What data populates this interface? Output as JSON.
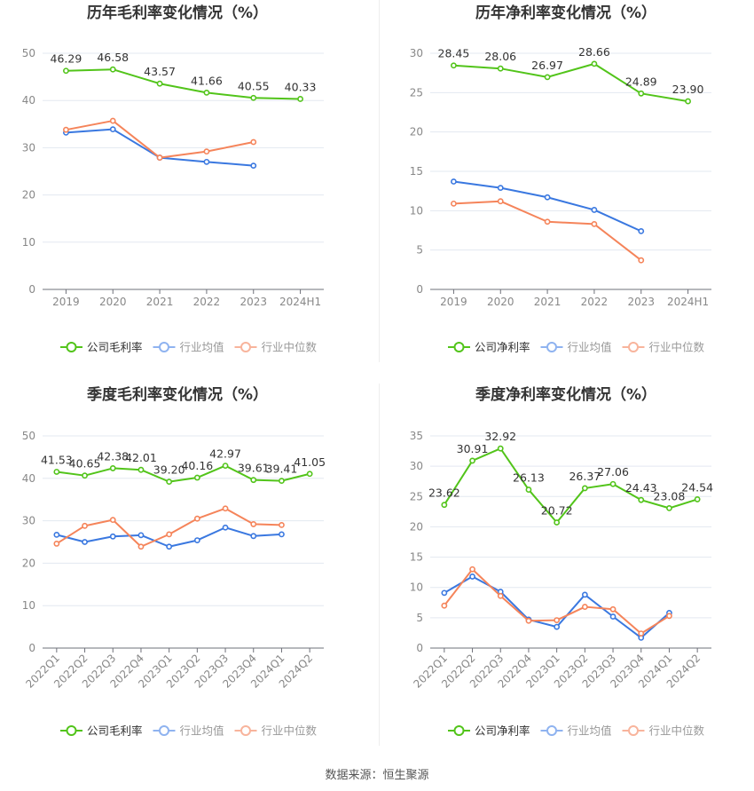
{
  "colors": {
    "company": "#52c41a",
    "industry_avg": "#3a78e0",
    "industry_median": "#f5845a",
    "legend_avg": "#8fb3f0",
    "legend_median": "#f8b49c",
    "grid": "#e3e8f0",
    "axis": "#6e7079"
  },
  "source": "数据来源：恒生聚源",
  "chart_data": [
    {
      "type": "line",
      "title": "历年毛利率变化情况（%）",
      "categories": [
        "2019",
        "2020",
        "2021",
        "2022",
        "2023",
        "2024H1"
      ],
      "ylim": [
        0,
        50
      ],
      "yticks": [
        "0",
        "10",
        "20",
        "30",
        "40",
        "50"
      ],
      "grid": true,
      "legend_position": "bottom",
      "series": [
        {
          "name": "公司毛利率",
          "key": "company",
          "values": [
            46.29,
            46.58,
            43.57,
            41.66,
            40.55,
            40.33
          ],
          "labels": [
            "46.29",
            "46.58",
            "43.57",
            "41.66",
            "40.55",
            "40.33"
          ]
        },
        {
          "name": "行业均值",
          "key": "industry_avg",
          "values": [
            33.2,
            33.9,
            27.9,
            27.0,
            26.2,
            null
          ]
        },
        {
          "name": "行业中位数",
          "key": "industry_median",
          "values": [
            33.8,
            35.7,
            27.9,
            29.2,
            31.2,
            null
          ]
        }
      ]
    },
    {
      "type": "line",
      "title": "历年净利率变化情况（%）",
      "categories": [
        "2019",
        "2020",
        "2021",
        "2022",
        "2023",
        "2024H1"
      ],
      "ylim": [
        0,
        30
      ],
      "yticks": [
        "0",
        "5",
        "10",
        "15",
        "20",
        "25",
        "30"
      ],
      "grid": true,
      "legend_position": "bottom",
      "series": [
        {
          "name": "公司净利率",
          "key": "company",
          "values": [
            28.45,
            28.06,
            26.97,
            28.66,
            24.89,
            23.9
          ],
          "labels": [
            "28.45",
            "28.06",
            "26.97",
            "28.66",
            "24.89",
            "23.90"
          ]
        },
        {
          "name": "行业均值",
          "key": "industry_avg",
          "values": [
            13.7,
            12.9,
            11.7,
            10.1,
            7.4,
            null
          ]
        },
        {
          "name": "行业中位数",
          "key": "industry_median",
          "values": [
            10.9,
            11.2,
            8.6,
            8.3,
            3.7,
            null
          ]
        }
      ]
    },
    {
      "type": "line",
      "title": "季度毛利率变化情况（%）",
      "categories": [
        "2022Q1",
        "2022Q2",
        "2022Q3",
        "2022Q4",
        "2023Q1",
        "2023Q2",
        "2023Q3",
        "2023Q4",
        "2024Q1",
        "2024Q2"
      ],
      "ylim": [
        0,
        50
      ],
      "yticks": [
        "0",
        "10",
        "20",
        "30",
        "40",
        "50"
      ],
      "grid": true,
      "legend_position": "bottom",
      "series": [
        {
          "name": "公司毛利率",
          "key": "company",
          "values": [
            41.53,
            40.65,
            42.38,
            42.01,
            39.2,
            40.16,
            42.97,
            39.61,
            39.41,
            41.05
          ],
          "labels": [
            "41.53",
            "40.65",
            "42.38",
            "42.01",
            "39.20",
            "40.16",
            "42.97",
            "39.61",
            "39.41",
            "41.05"
          ]
        },
        {
          "name": "行业均值",
          "key": "industry_avg",
          "values": [
            26.7,
            25.0,
            26.3,
            26.6,
            23.9,
            25.4,
            28.4,
            26.4,
            26.8,
            null
          ]
        },
        {
          "name": "行业中位数",
          "key": "industry_median",
          "values": [
            24.6,
            28.8,
            30.2,
            23.9,
            26.8,
            30.5,
            32.9,
            29.2,
            29.0,
            null
          ]
        }
      ]
    },
    {
      "type": "line",
      "title": "季度净利率变化情况（%）",
      "categories": [
        "2022Q1",
        "2022Q2",
        "2022Q3",
        "2022Q4",
        "2023Q1",
        "2023Q2",
        "2023Q3",
        "2023Q4",
        "2024Q1",
        "2024Q2"
      ],
      "ylim": [
        0,
        35
      ],
      "yticks": [
        "0",
        "5",
        "10",
        "15",
        "20",
        "25",
        "30",
        "35"
      ],
      "grid": true,
      "legend_position": "bottom",
      "series": [
        {
          "name": "公司净利率",
          "key": "company",
          "values": [
            23.62,
            30.91,
            32.92,
            26.13,
            20.72,
            26.37,
            27.06,
            24.43,
            23.08,
            24.54
          ],
          "labels": [
            "23.62",
            "30.91",
            "32.92",
            "26.13",
            "20.72",
            "26.37",
            "27.06",
            "24.43",
            "23.08",
            "24.54"
          ]
        },
        {
          "name": "行业均值",
          "key": "industry_avg",
          "values": [
            9.1,
            11.8,
            9.3,
            4.7,
            3.5,
            8.8,
            5.2,
            1.7,
            5.8,
            null
          ]
        },
        {
          "name": "行业中位数",
          "key": "industry_median",
          "values": [
            7.0,
            13.0,
            8.6,
            4.5,
            4.6,
            6.8,
            6.4,
            2.4,
            5.3,
            null
          ]
        }
      ]
    }
  ]
}
